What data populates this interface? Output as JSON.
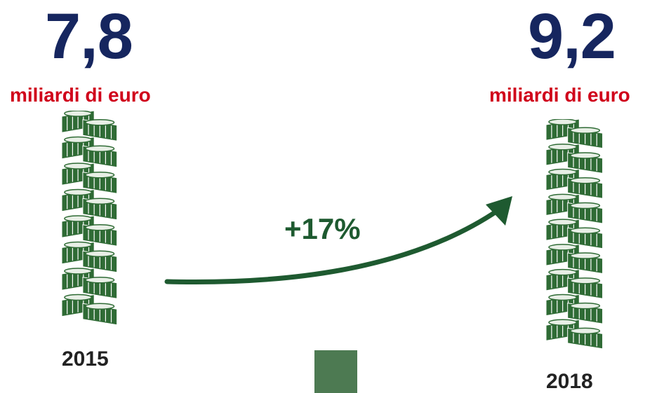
{
  "left": {
    "value": "7,8",
    "unit": "miliardi di euro",
    "year": "2015",
    "stack_icon": "money-stack-icon",
    "bundles": 8
  },
  "right": {
    "value": "9,2",
    "unit": "miliardi di euro",
    "year": "2018",
    "stack_icon": "money-stack-icon",
    "bundles": 9
  },
  "change": {
    "label": "+17%",
    "icon": "curved-arrow-icon"
  },
  "colors": {
    "value_blue": "#16265f",
    "unit_red": "#d0021b",
    "arrow_green": "#1e5a30",
    "money_green": "#2f6b35",
    "swatch_green": "#4d7a52"
  }
}
